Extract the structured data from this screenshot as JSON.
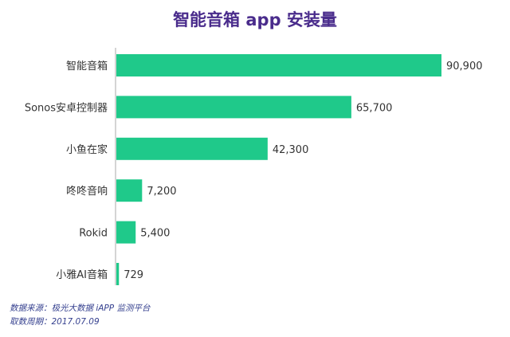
{
  "chart_data": {
    "type": "bar",
    "orientation": "horizontal",
    "title": "智能音箱 app 安装量",
    "categories": [
      "智能音箱",
      "Sonos安卓控制器",
      "小鱼在家",
      "咚咚音响",
      "Rokid",
      "小雅AI音箱"
    ],
    "values": [
      90900,
      65700,
      42300,
      7200,
      5400,
      729
    ],
    "value_labels": [
      "90,900",
      "65,700",
      "42,300",
      "7,200",
      "5,400",
      "729"
    ],
    "xlim": [
      0,
      90900
    ],
    "grid": false,
    "legend": "none"
  },
  "colors": {
    "bar": "#1fc98a",
    "title": "#4a2c8c",
    "axis": "#a8a8a8",
    "label": "#333333",
    "footer": "#35408f"
  },
  "footer": {
    "source": "数据来源：极光大数据 iAPP 监测平台",
    "period": "取数周期：2017.07.09"
  }
}
